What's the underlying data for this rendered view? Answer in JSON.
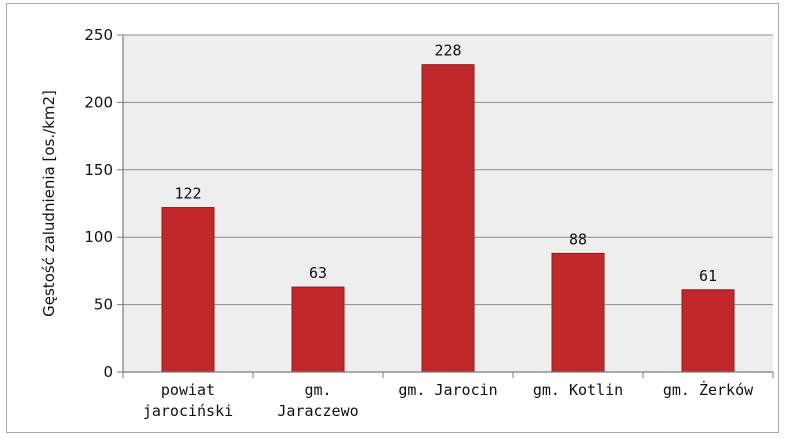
{
  "chart_data": {
    "type": "bar",
    "title": "",
    "xlabel": "",
    "ylabel": "Gęstość zaludnienia [os./km2]",
    "categories": [
      [
        "powiat",
        "jarociński"
      ],
      [
        "gm.",
        "Jaraczewo"
      ],
      [
        "gm. Jarocin"
      ],
      [
        "gm. Kotlin"
      ],
      [
        "gm. Żerków"
      ]
    ],
    "values": [
      122,
      63,
      228,
      88,
      61
    ],
    "data_labels": [
      "122",
      "63",
      "228",
      "88",
      "61"
    ],
    "ylim": [
      0,
      250
    ],
    "yticks": [
      0,
      50,
      100,
      150,
      200,
      250
    ],
    "grid": true,
    "legend": "none",
    "colors": {
      "bar": "#c0282b",
      "bar_edge": "#8e1c1e",
      "plot_bg": "#eeeeee",
      "grid": "#8c8c8c",
      "axis": "#7a7a7a"
    }
  }
}
